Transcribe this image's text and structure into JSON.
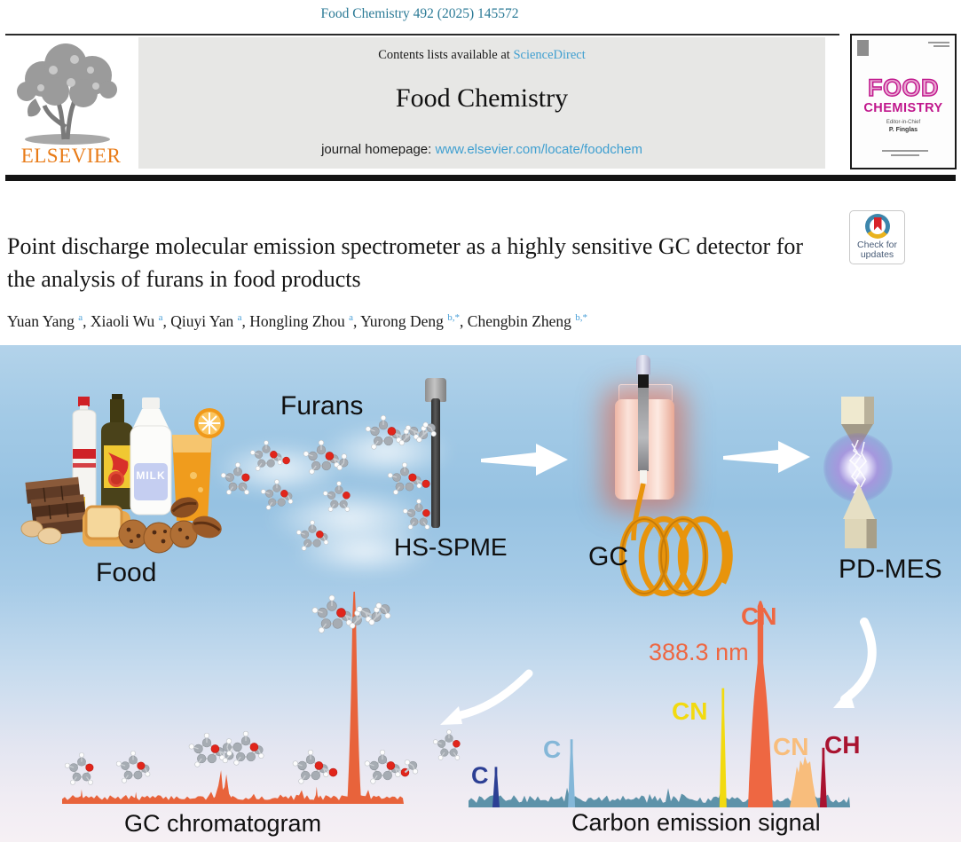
{
  "journal": {
    "citation": "Food Chemistry 492 (2025) 145572",
    "contents_prefix": "Contents lists available at",
    "sciencedirect_link": "ScienceDirect",
    "name": "Food Chemistry",
    "homepage_prefix": "journal homepage:",
    "homepage_url": "www.elsevier.com/locate/foodchem",
    "publisher_wordmark": "ELSEVIER",
    "cover": {
      "title_top": "FOOD",
      "title_bottom": "CHEMISTRY",
      "editor_label": "Editor-in-Chief",
      "editor_name": "P. Finglas"
    }
  },
  "article": {
    "title": "Point discharge molecular emission spectrometer as a highly sensitive GC detector for the analysis of furans in food products",
    "authors": [
      {
        "name": "Yuan Yang",
        "sup": "a"
      },
      {
        "name": "Xiaoli Wu",
        "sup": "a"
      },
      {
        "name": "Qiuyi Yan",
        "sup": "a"
      },
      {
        "name": "Hongling Zhou",
        "sup": "a"
      },
      {
        "name": "Yurong Deng",
        "sup": "b,*"
      },
      {
        "name": "Chengbin Zheng",
        "sup": "b,*"
      }
    ],
    "check_badge_line1": "Check for",
    "check_badge_line2": "updates"
  },
  "graphical_abstract": {
    "labels": {
      "food": "Food",
      "furans": "Furans",
      "hs_spme": "HS-SPME",
      "gc": "GC",
      "pd_mes": "PD-MES"
    },
    "milk_label": "MILK",
    "carbon_signal": {
      "caption": "Carbon emission signal",
      "wavelength_annotation": "388.3 nm",
      "wavelength_color": "#ee6742",
      "baseline_color": "#5d92a9",
      "peaks": [
        {
          "species": "C",
          "color": "#2c3f94",
          "x": 0.072,
          "h": 0.19,
          "type": "thin"
        },
        {
          "species": "C",
          "color": "#84b7d8",
          "x": 0.27,
          "h": 0.32,
          "type": "thin"
        },
        {
          "species": "CN",
          "color": "#f2da10",
          "x": 0.667,
          "h": 0.56,
          "type": "thin"
        },
        {
          "species": "CN",
          "color": "#ee6742",
          "x": 0.765,
          "h": 0.97,
          "type": "spike"
        },
        {
          "species": "CN",
          "color": "#f8bd7c",
          "x": 0.879,
          "h": 0.24,
          "type": "broad"
        },
        {
          "species": "CH",
          "color": "#a91330",
          "x": 0.93,
          "h": 0.28,
          "type": "thin"
        }
      ]
    },
    "gc_chromatogram": {
      "caption": "GC chromatogram",
      "trace_color": "#e8633b",
      "peaks": [
        {
          "x": 0.057,
          "h": 0.067,
          "type": "small"
        },
        {
          "x": 0.216,
          "h": 0.055,
          "type": "small"
        },
        {
          "x": 0.473,
          "h": 0.155,
          "type": "double"
        },
        {
          "x": 0.745,
          "h": 0.08,
          "type": "small"
        },
        {
          "x": 0.855,
          "h": 0.98,
          "type": "tall"
        },
        {
          "x": 0.893,
          "h": 0.045,
          "type": "small"
        }
      ]
    }
  }
}
